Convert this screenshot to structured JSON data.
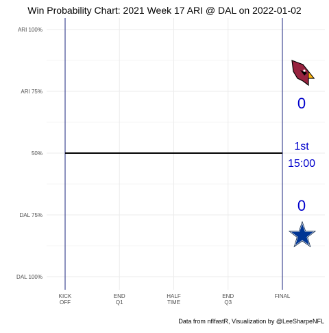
{
  "chart_data": {
    "type": "line",
    "title": "Win Probability Chart: 2021 Week 17 ARI @ DAL on 2022-01-02",
    "y_ticks": [
      {
        "value": 100,
        "label": "ARI 100%"
      },
      {
        "value": 75,
        "label": "ARI 75%"
      },
      {
        "value": 50,
        "label": "50%"
      },
      {
        "value": 25,
        "label": "DAL 75%"
      },
      {
        "value": 0,
        "label": "DAL 100%"
      }
    ],
    "ylim": [
      0,
      100
    ],
    "x_ticks": [
      {
        "value": 0,
        "line1": "KICK",
        "line2": "OFF"
      },
      {
        "value": 15,
        "line1": "END",
        "line2": "Q1"
      },
      {
        "value": 30,
        "line1": "HALF",
        "line2": "TIME"
      },
      {
        "value": 45,
        "line1": "END",
        "line2": "Q3"
      },
      {
        "value": 60,
        "line1": "FINAL",
        "line2": ""
      }
    ],
    "xlim": [
      0,
      60
    ],
    "series": [
      {
        "color": "#000000",
        "x": [
          0,
          60
        ],
        "y": [
          50,
          50
        ]
      }
    ],
    "annotations": {
      "away_score": "0",
      "home_score": "0",
      "quarter": "1st",
      "clock": "15:00"
    },
    "grid": true,
    "colors": {
      "boundary_lines": "#1a237e",
      "score_text": "#0000cc",
      "gridlines": "#ebebeb"
    },
    "logos": {
      "away": "cardinal-logo-icon",
      "home": "star-logo-icon"
    }
  },
  "caption": "Data from nflfastR, Visualization by @LeeSharpeNFL"
}
